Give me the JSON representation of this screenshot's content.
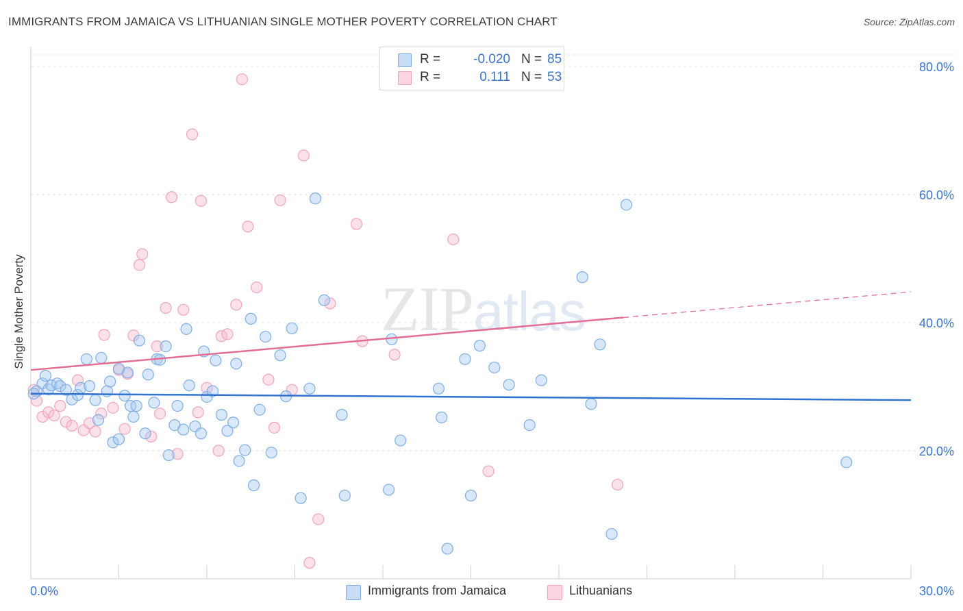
{
  "title": "IMMIGRANTS FROM JAMAICA VS LITHUANIAN SINGLE MOTHER POVERTY CORRELATION CHART",
  "source": "Source: ZipAtlas.com",
  "watermark": {
    "zip": "ZIP",
    "atlas": "atlas"
  },
  "legend": {
    "rows": [
      {
        "r_label": "R =",
        "r_value": "-0.020",
        "n_label": "N =",
        "n_value": "85",
        "color": "#a9c9f1"
      },
      {
        "r_label": "R =",
        "r_value": "0.111",
        "n_label": "N =",
        "n_value": "53",
        "color": "#f6bccd"
      }
    ]
  },
  "bottom_legend": [
    {
      "label": "Immigrants from Jamaica",
      "color": "#a9c9f1"
    },
    {
      "label": "Lithuanians",
      "color": "#f6bccd"
    }
  ],
  "chart_data": {
    "type": "scatter",
    "title": "IMMIGRANTS FROM JAMAICA VS LITHUANIAN SINGLE MOTHER POVERTY CORRELATION CHART",
    "ylabel": "Single Mother Poverty",
    "xlabel": "",
    "xlim": [
      0,
      30
    ],
    "ylim": [
      0,
      80
    ],
    "x_tick_labels": [
      "0.0%",
      "30.0%"
    ],
    "y_ticks": [
      20,
      40,
      60,
      80
    ],
    "y_tick_labels": [
      "20.0%",
      "40.0%",
      "60.0%",
      "80.0%"
    ],
    "grid": "horizontal dashed",
    "legend_position": "top-center",
    "series": [
      {
        "name": "Immigrants from Jamaica",
        "color": "#7eaee6",
        "trend": {
          "x": [
            0,
            30
          ],
          "y": [
            28.9,
            27.9
          ],
          "color": "#2f72d0"
        },
        "points": [
          [
            0.2,
            29.3
          ],
          [
            0.4,
            30.5
          ],
          [
            0.5,
            31.7
          ],
          [
            0.6,
            29.6
          ],
          [
            0.7,
            30.2
          ],
          [
            0.9,
            30.5
          ],
          [
            1.0,
            30.1
          ],
          [
            1.2,
            29.5
          ],
          [
            1.4,
            28.0
          ],
          [
            1.6,
            28.7
          ],
          [
            1.7,
            29.8
          ],
          [
            1.9,
            34.3
          ],
          [
            2.0,
            30.1
          ],
          [
            2.2,
            27.9
          ],
          [
            2.3,
            24.8
          ],
          [
            2.4,
            34.5
          ],
          [
            2.6,
            29.3
          ],
          [
            2.7,
            30.8
          ],
          [
            2.8,
            21.3
          ],
          [
            3.0,
            21.8
          ],
          [
            3.2,
            28.6
          ],
          [
            3.3,
            32.2
          ],
          [
            3.4,
            27.0
          ],
          [
            3.5,
            25.3
          ],
          [
            3.6,
            27.0
          ],
          [
            3.7,
            37.2
          ],
          [
            3.9,
            22.7
          ],
          [
            4.0,
            31.9
          ],
          [
            4.2,
            27.5
          ],
          [
            4.3,
            34.3
          ],
          [
            4.4,
            34.2
          ],
          [
            4.6,
            36.3
          ],
          [
            4.7,
            19.3
          ],
          [
            4.9,
            24.0
          ],
          [
            5.0,
            27.0
          ],
          [
            5.2,
            23.3
          ],
          [
            5.3,
            39.0
          ],
          [
            5.4,
            30.2
          ],
          [
            5.6,
            23.8
          ],
          [
            5.8,
            22.7
          ],
          [
            5.9,
            35.5
          ],
          [
            6.0,
            28.4
          ],
          [
            6.2,
            29.3
          ],
          [
            6.3,
            34.1
          ],
          [
            6.5,
            25.6
          ],
          [
            6.7,
            23.1
          ],
          [
            6.9,
            24.4
          ],
          [
            7.0,
            33.6
          ],
          [
            7.1,
            18.4
          ],
          [
            7.3,
            20.1
          ],
          [
            7.5,
            40.6
          ],
          [
            7.6,
            14.6
          ],
          [
            7.8,
            26.4
          ],
          [
            8.0,
            37.8
          ],
          [
            8.2,
            19.7
          ],
          [
            8.5,
            34.9
          ],
          [
            8.7,
            28.5
          ],
          [
            8.9,
            39.1
          ],
          [
            9.2,
            12.6
          ],
          [
            9.5,
            29.7
          ],
          [
            9.7,
            59.4
          ],
          [
            10.0,
            43.5
          ],
          [
            10.6,
            25.6
          ],
          [
            10.7,
            13.0
          ],
          [
            12.2,
            13.9
          ],
          [
            12.3,
            37.4
          ],
          [
            12.6,
            21.6
          ],
          [
            13.9,
            29.7
          ],
          [
            14.0,
            25.2
          ],
          [
            14.2,
            4.7
          ],
          [
            14.8,
            34.3
          ],
          [
            15.0,
            13.0
          ],
          [
            15.3,
            36.4
          ],
          [
            15.8,
            33.0
          ],
          [
            16.3,
            30.3
          ],
          [
            17.0,
            24.0
          ],
          [
            17.4,
            31.0
          ],
          [
            18.8,
            47.1
          ],
          [
            19.1,
            27.3
          ],
          [
            19.4,
            36.6
          ],
          [
            19.8,
            7.0
          ],
          [
            20.3,
            58.4
          ],
          [
            27.8,
            18.2
          ],
          [
            0.1,
            28.9
          ],
          [
            3.0,
            32.8
          ]
        ]
      },
      {
        "name": "Lithuanians",
        "color": "#f2a4bc",
        "trend": {
          "x": [
            0,
            20.2
          ],
          "y": [
            32.6,
            40.8
          ],
          "color": "#e36d93",
          "dashed_extension": {
            "x": [
              20.2,
              30
            ],
            "y": [
              40.8,
              44.8
            ]
          }
        },
        "points": [
          [
            0.1,
            29.5
          ],
          [
            0.2,
            27.8
          ],
          [
            0.4,
            25.3
          ],
          [
            0.6,
            26.0
          ],
          [
            0.8,
            25.5
          ],
          [
            1.0,
            27.0
          ],
          [
            1.2,
            24.5
          ],
          [
            1.4,
            23.9
          ],
          [
            1.6,
            31.0
          ],
          [
            1.8,
            23.2
          ],
          [
            2.0,
            24.3
          ],
          [
            2.2,
            23.0
          ],
          [
            2.4,
            25.8
          ],
          [
            2.5,
            38.1
          ],
          [
            2.8,
            26.7
          ],
          [
            3.0,
            32.6
          ],
          [
            3.2,
            23.4
          ],
          [
            3.3,
            32.0
          ],
          [
            3.5,
            38.0
          ],
          [
            3.7,
            49.0
          ],
          [
            3.8,
            50.7
          ],
          [
            4.1,
            22.2
          ],
          [
            4.3,
            36.3
          ],
          [
            4.4,
            25.8
          ],
          [
            4.6,
            42.3
          ],
          [
            4.8,
            59.6
          ],
          [
            5.0,
            19.5
          ],
          [
            5.2,
            42.0
          ],
          [
            5.5,
            69.4
          ],
          [
            5.7,
            26.0
          ],
          [
            5.8,
            59.0
          ],
          [
            6.0,
            29.8
          ],
          [
            6.4,
            20.0
          ],
          [
            6.5,
            37.9
          ],
          [
            6.7,
            38.2
          ],
          [
            7.0,
            42.8
          ],
          [
            7.2,
            78.0
          ],
          [
            7.4,
            55.0
          ],
          [
            7.7,
            45.5
          ],
          [
            8.1,
            31.1
          ],
          [
            8.3,
            23.6
          ],
          [
            8.5,
            59.1
          ],
          [
            8.9,
            29.5
          ],
          [
            9.3,
            66.1
          ],
          [
            9.5,
            2.5
          ],
          [
            9.8,
            9.3
          ],
          [
            10.2,
            43.0
          ],
          [
            11.1,
            55.4
          ],
          [
            11.3,
            37.1
          ],
          [
            12.4,
            35.0
          ],
          [
            14.4,
            53.0
          ],
          [
            15.6,
            16.8
          ],
          [
            20.0,
            14.7
          ]
        ]
      }
    ]
  }
}
